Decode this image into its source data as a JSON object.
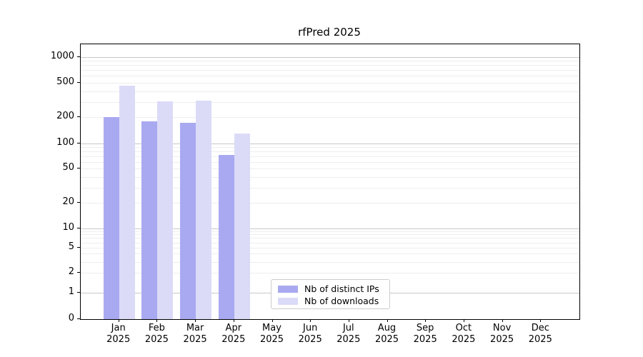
{
  "title": "rfPred 2025",
  "year": "2025",
  "legend": {
    "items": [
      {
        "label": "Nb of distinct IPs",
        "color": "#a9a9f1"
      },
      {
        "label": "Nb of downloads",
        "color": "#dbdbf8"
      }
    ]
  },
  "chart_data": {
    "type": "bar",
    "title": "rfPred 2025",
    "categories": [
      "Jan 2025",
      "Feb 2025",
      "Mar 2025",
      "Apr 2025",
      "May 2025",
      "Jun 2025",
      "Jul 2025",
      "Aug 2025",
      "Sep 2025",
      "Oct 2025",
      "Nov 2025",
      "Dec 2025"
    ],
    "month_labels": [
      "Jan",
      "Feb",
      "Mar",
      "Apr",
      "May",
      "Jun",
      "Jul",
      "Aug",
      "Sep",
      "Oct",
      "Nov",
      "Dec"
    ],
    "series": [
      {
        "name": "Nb of distinct IPs",
        "color": "#a9a9f1",
        "values": [
          200,
          178,
          172,
          73,
          null,
          null,
          null,
          null,
          null,
          null,
          null,
          null
        ]
      },
      {
        "name": "Nb of downloads",
        "color": "#dbdbf8",
        "values": [
          460,
          303,
          310,
          129,
          null,
          null,
          null,
          null,
          null,
          null,
          null,
          null
        ]
      }
    ],
    "yscale": "symlog",
    "ylim": [
      0,
      1390
    ],
    "yticks": [
      0,
      1,
      2,
      5,
      10,
      20,
      50,
      100,
      200,
      500,
      1000
    ],
    "grid": true,
    "gridline_major_values": [
      1,
      10,
      100,
      1000
    ],
    "gridline_major_color": "#c8c8c8",
    "gridline_minor_color": "#eeeeee",
    "legend_position": "lower center"
  }
}
